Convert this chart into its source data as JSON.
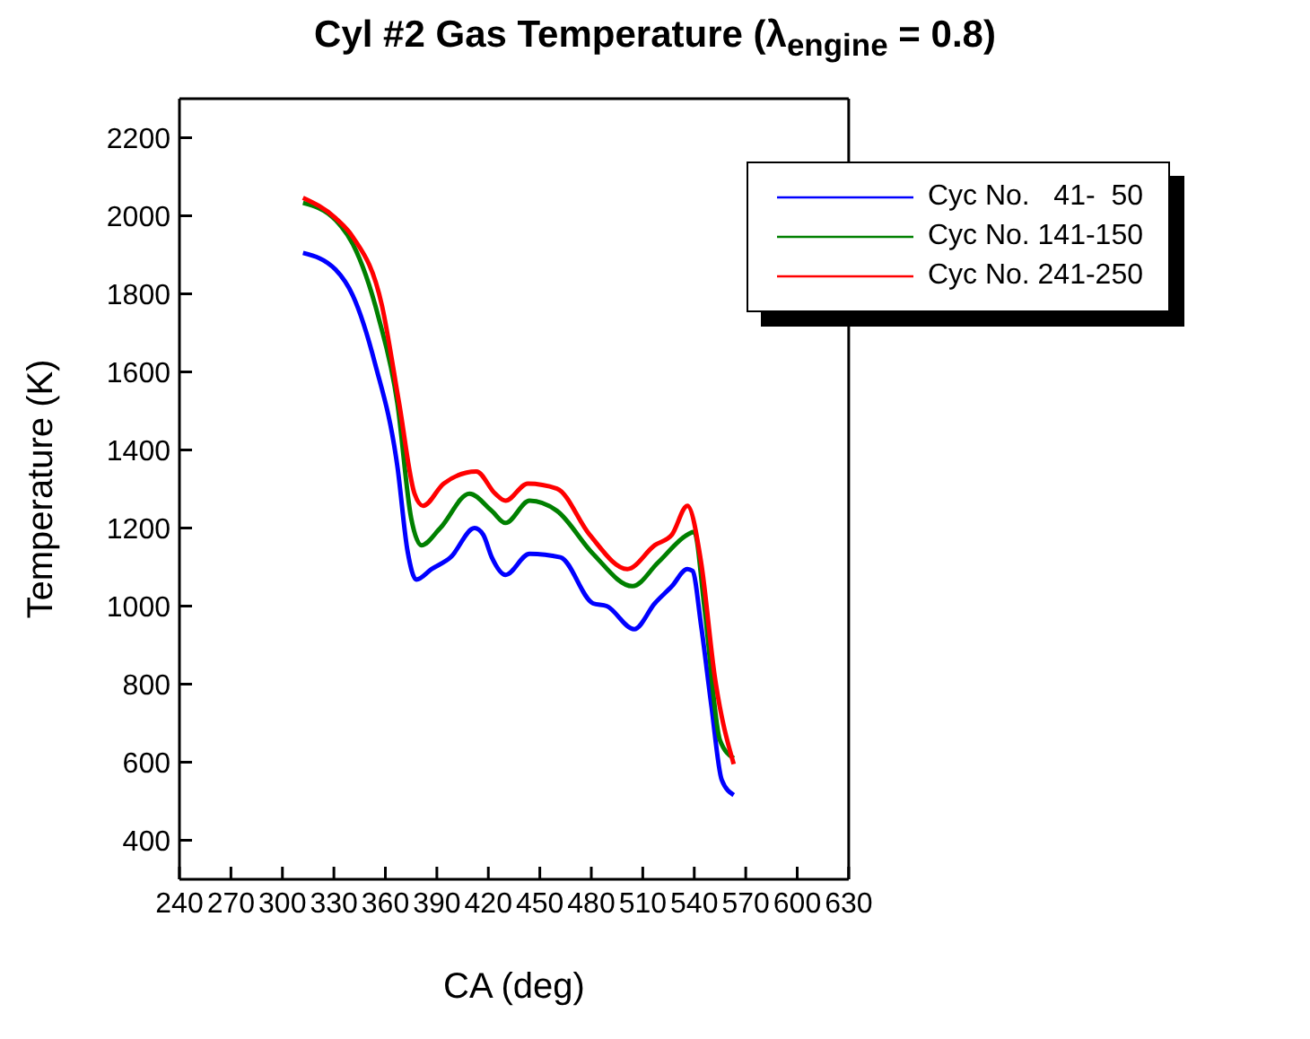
{
  "chart_data": {
    "type": "line",
    "title": "Cyl #2 Gas Temperature (λ$_{engine}$ = 0.8)",
    "xlabel": "CA (deg)",
    "ylabel": "Temperature (K)",
    "xlim": [
      240,
      630
    ],
    "xticks": [
      240,
      270,
      300,
      330,
      360,
      390,
      420,
      450,
      480,
      510,
      540,
      570,
      600,
      630
    ],
    "ylim": [
      300,
      2300
    ],
    "yticks": [
      400,
      600,
      800,
      1000,
      1200,
      1400,
      1600,
      1800,
      2000,
      2200
    ],
    "grid": false,
    "legend": "top right",
    "marker": "none",
    "line_style": "solid",
    "series": [
      {
        "name": "Cyc No.   41-  50",
        "color": "#0000ff",
        "x": [
          312,
          331,
          341,
          354,
          367,
          373,
          378,
          387,
          398,
          412,
          417,
          422,
          430,
          444,
          462,
          481,
          489,
          505,
          517,
          527,
          536,
          539,
          544,
          550,
          556,
          563
        ],
        "values": [
          1905,
          1862,
          1796,
          1621,
          1358,
          1139,
          1068,
          1095,
          1125,
          1200,
          1183,
          1125,
          1080,
          1134,
          1125,
          1007,
          1000,
          941,
          1007,
          1051,
          1095,
          1090,
          950,
          744,
          555,
          516
        ]
      },
      {
        "name": "Cyc No. 141-150",
        "color": "#008000",
        "x": [
          312,
          331,
          341,
          356,
          367,
          375,
          381,
          392,
          409,
          422,
          430,
          444,
          460,
          481,
          504,
          519,
          536,
          540,
          546,
          555,
          563
        ],
        "values": [
          2033,
          1989,
          1928,
          1740,
          1520,
          1226,
          1156,
          1200,
          1288,
          1244,
          1213,
          1270,
          1244,
          1134,
          1051,
          1112,
          1183,
          1190,
          994,
          656,
          610
        ]
      },
      {
        "name": "Cyc No. 241-250",
        "color": "#ff0000",
        "x": [
          312,
          331,
          341,
          358,
          368,
          377,
          382,
          394,
          413,
          424,
          430,
          443,
          460,
          479,
          501,
          517,
          527,
          536,
          544,
          552,
          563
        ],
        "values": [
          2046,
          1994,
          1946,
          1770,
          1520,
          1288,
          1257,
          1314,
          1345,
          1288,
          1270,
          1314,
          1301,
          1183,
          1095,
          1156,
          1183,
          1257,
          1112,
          818,
          595
        ]
      }
    ]
  }
}
